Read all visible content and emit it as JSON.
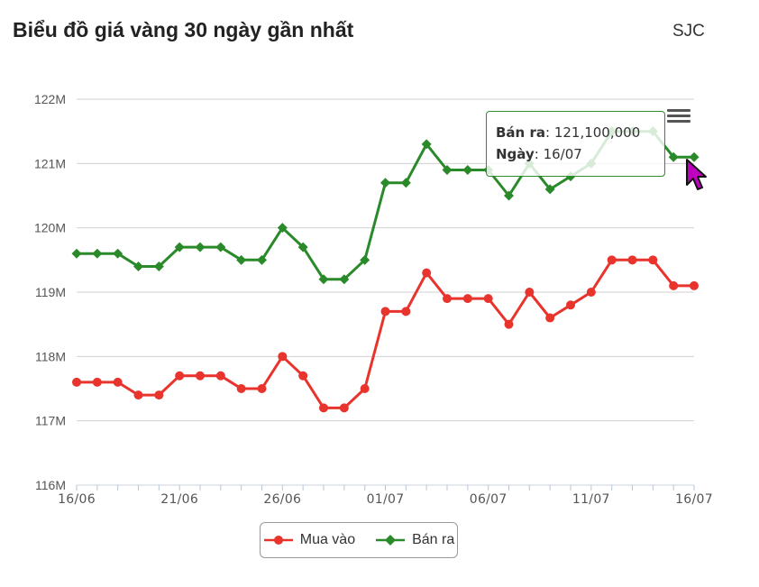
{
  "header": {
    "title": "Biểu đồ giá vàng 30 ngày gần nhất",
    "brand": "SJC"
  },
  "colors": {
    "buy": "#e8342c",
    "sell": "#2a8a2a",
    "grid": "#d0d0d0"
  },
  "tooltip": {
    "series_label": "Bán ra",
    "value": "121,100,000",
    "date_label": "Ngày",
    "date": "16/07"
  },
  "menu": {
    "icon": "hamburger-menu-icon"
  },
  "chart_data": {
    "type": "line",
    "title": "",
    "xlabel": "",
    "ylabel": "",
    "ylim": [
      116000000,
      122000000
    ],
    "ytick_values": [
      116000000,
      117000000,
      118000000,
      119000000,
      120000000,
      121000000,
      122000000
    ],
    "ytick_labels": [
      "116M",
      "117M",
      "118M",
      "119M",
      "120M",
      "121M",
      "122M"
    ],
    "xtick_labels": [
      "16/06",
      "21/06",
      "26/06",
      "01/07",
      "06/07",
      "11/07",
      "16/07"
    ],
    "x": [
      "16/06",
      "17/06",
      "18/06",
      "19/06",
      "20/06",
      "21/06",
      "22/06",
      "23/06",
      "24/06",
      "25/06",
      "26/06",
      "27/06",
      "28/06",
      "29/06",
      "30/06",
      "01/07",
      "02/07",
      "03/07",
      "04/07",
      "05/07",
      "06/07",
      "07/07",
      "08/07",
      "09/07",
      "10/07",
      "11/07",
      "12/07",
      "13/07",
      "14/07",
      "15/07",
      "16/07"
    ],
    "series": [
      {
        "name": "Mua vào",
        "marker": "circle",
        "color": "#e8342c",
        "values": [
          117600000,
          117600000,
          117600000,
          117400000,
          117400000,
          117700000,
          117700000,
          117700000,
          117500000,
          117500000,
          118000000,
          117700000,
          117200000,
          117200000,
          117500000,
          118700000,
          118700000,
          119300000,
          118900000,
          118900000,
          118900000,
          118500000,
          119000000,
          118600000,
          118800000,
          119000000,
          119500000,
          119500000,
          119500000,
          119100000,
          119100000
        ]
      },
      {
        "name": "Bán ra",
        "marker": "diamond",
        "color": "#2a8a2a",
        "values": [
          119600000,
          119600000,
          119600000,
          119400000,
          119400000,
          119700000,
          119700000,
          119700000,
          119500000,
          119500000,
          120000000,
          119700000,
          119200000,
          119200000,
          119500000,
          120700000,
          120700000,
          121300000,
          120900000,
          120900000,
          120900000,
          120500000,
          121000000,
          120600000,
          120800000,
          121000000,
          121500000,
          121500000,
          121500000,
          121100000,
          121100000
        ]
      }
    ],
    "grid": true,
    "legend": "bottom"
  }
}
